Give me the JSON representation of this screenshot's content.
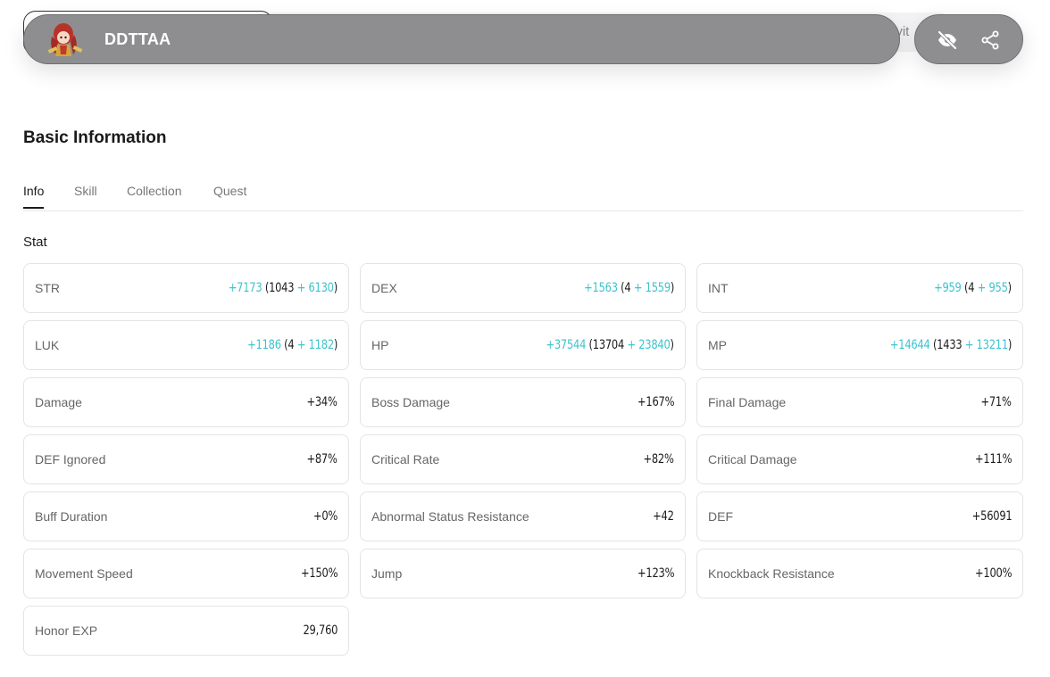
{
  "header": {
    "character_name": "DDTTAA",
    "peek_text": "ivit",
    "avatar_icon": "character-avatar-icon",
    "hide_icon": "eye-off-icon",
    "share_icon": "share-icon"
  },
  "section": {
    "title": "Basic Information"
  },
  "tabs": [
    {
      "label": "Info",
      "active": true
    },
    {
      "label": "Skill",
      "active": false
    },
    {
      "label": "Collection",
      "active": false
    },
    {
      "label": "Quest",
      "active": false
    }
  ],
  "stat_title": "Stat",
  "stats": [
    {
      "label": "STR",
      "total": "+7173",
      "base": "1043",
      "bonus": "+ 6130"
    },
    {
      "label": "DEX",
      "total": "+1563",
      "base": "4",
      "bonus": "+ 1559"
    },
    {
      "label": "INT",
      "total": "+959",
      "base": "4",
      "bonus": "+ 955"
    },
    {
      "label": "LUK",
      "total": "+1186",
      "base": "4",
      "bonus": "+ 1182"
    },
    {
      "label": "HP",
      "total": "+37544",
      "base": "13704",
      "bonus": "+ 23840"
    },
    {
      "label": "MP",
      "total": "+14644",
      "base": "1433",
      "bonus": "+ 13211"
    },
    {
      "label": "Damage",
      "value": "+34%"
    },
    {
      "label": "Boss Damage",
      "value": "+167%"
    },
    {
      "label": "Final Damage",
      "value": "+71%"
    },
    {
      "label": "DEF Ignored",
      "value": "+87%"
    },
    {
      "label": "Critical Rate",
      "value": "+82%"
    },
    {
      "label": "Critical Damage",
      "value": "+111%"
    },
    {
      "label": "Buff Duration",
      "value": "+0%"
    },
    {
      "label": "Abnormal Status Resistance",
      "value": "+42"
    },
    {
      "label": "DEF",
      "value": "+56091"
    },
    {
      "label": "Movement Speed",
      "value": "+150%"
    },
    {
      "label": "Jump",
      "value": "+123%"
    },
    {
      "label": "Knockback Resistance",
      "value": "+100%"
    },
    {
      "label": "Honor EXP",
      "value": "29,760"
    }
  ],
  "colors": {
    "accent_teal": "#3cc3cd",
    "topbar_gray": "#8e8e90"
  }
}
